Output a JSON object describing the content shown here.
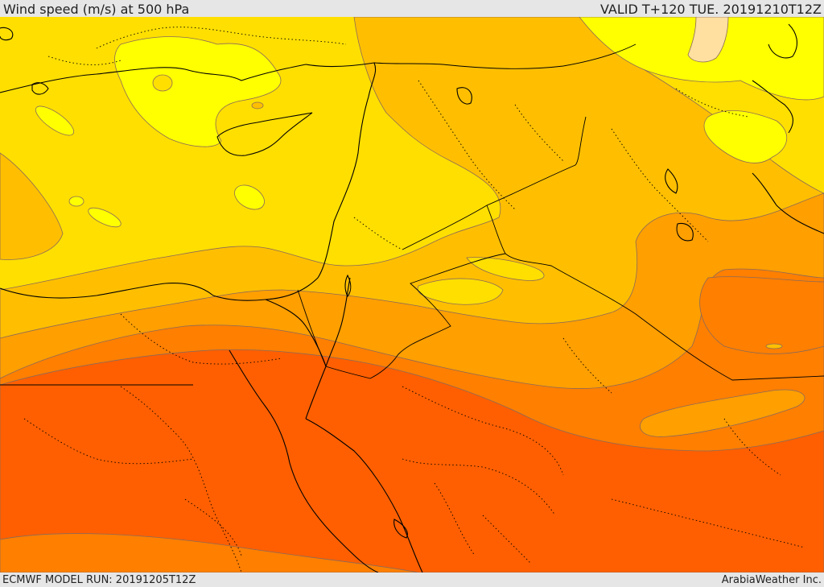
{
  "header": {
    "title": "Wind speed (m/s) at 500 hPa",
    "valid": "VALID T+120 TUE. 20191210T12Z"
  },
  "footer": {
    "model_run": "ECMWF MODEL RUN: 20191205T12Z",
    "credit": "ArabiaWeather Inc."
  },
  "map": {
    "fill_colors": {
      "lightest": "#ffffa0",
      "band_1": "#ffff00",
      "band_2": "#ffdf00",
      "band_3": "#ffbf00",
      "band_4": "#ff9f00",
      "band_5": "#ff7f00",
      "band_6": "#ff5f00"
    },
    "contour_color": "#8a6a5a",
    "coastline_color": "#000000",
    "border_style": "dotted"
  }
}
